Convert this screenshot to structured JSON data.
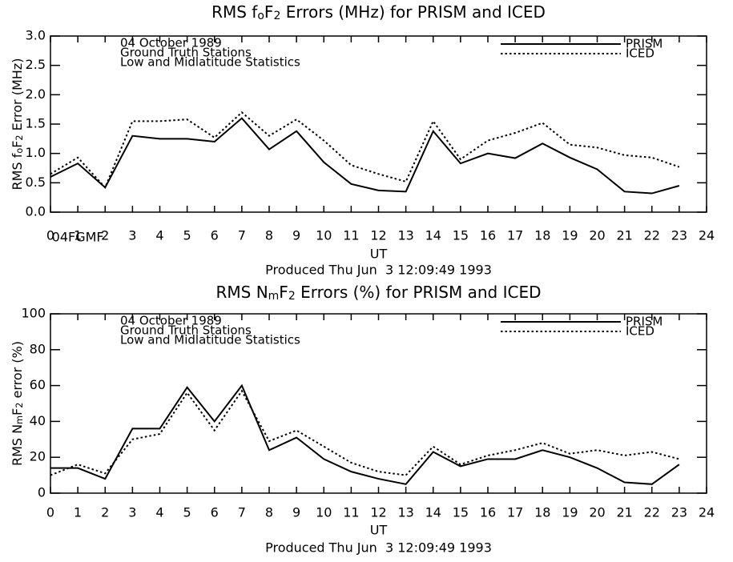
{
  "chart_data": [
    {
      "type": "line",
      "title": [
        "RMS f",
        "o",
        "F",
        "2",
        " Errors (MHz) for PRISM and ICED"
      ],
      "ylabel": [
        "RMS f",
        "o",
        "F",
        "2",
        " Error (MHz)"
      ],
      "xlabel": "UT",
      "footer": "Produced Thu Jun  3 12:09:49 1993",
      "annotations": [
        "04 October 1989",
        "Ground Truth Stations",
        "Low and Midlatitude Statistics"
      ],
      "stray_label": "04FGMF",
      "legend": "upper right",
      "x": [
        0,
        1,
        2,
        3,
        4,
        5,
        6,
        7,
        8,
        9,
        10,
        11,
        12,
        13,
        14,
        15,
        16,
        17,
        18,
        19,
        20,
        21,
        22,
        23
      ],
      "xlim": [
        0,
        24
      ],
      "xticks": [
        0,
        1,
        2,
        3,
        4,
        5,
        6,
        7,
        8,
        9,
        10,
        11,
        12,
        13,
        14,
        15,
        16,
        17,
        18,
        19,
        20,
        21,
        22,
        23,
        24
      ],
      "ylim": [
        0,
        3
      ],
      "yticks": [
        {
          "value": 0,
          "label": "0.0"
        },
        {
          "value": 0.5,
          "label": "0.5"
        },
        {
          "value": 1,
          "label": "1.0"
        },
        {
          "value": 1.5,
          "label": "1.5"
        },
        {
          "value": 2,
          "label": "2.0"
        },
        {
          "value": 2.5,
          "label": "2.5"
        },
        {
          "value": 3,
          "label": "3.0"
        }
      ],
      "series": [
        {
          "name": "PRISM",
          "color": "#000000",
          "dash": "solid",
          "values": [
            0.6,
            0.83,
            0.42,
            1.3,
            1.25,
            1.25,
            1.2,
            1.6,
            1.07,
            1.38,
            0.85,
            0.48,
            0.37,
            0.35,
            1.38,
            0.83,
            1.0,
            0.92,
            1.17,
            0.93,
            0.73,
            0.35,
            0.32,
            0.45
          ]
        },
        {
          "name": "ICED",
          "color": "#000000",
          "dash": "dotted",
          "values": [
            0.65,
            0.93,
            0.42,
            1.55,
            1.55,
            1.58,
            1.27,
            1.7,
            1.3,
            1.58,
            1.22,
            0.8,
            0.65,
            0.52,
            1.55,
            0.9,
            1.22,
            1.35,
            1.52,
            1.15,
            1.1,
            0.97,
            0.93,
            0.77
          ]
        }
      ]
    },
    {
      "type": "line",
      "title": [
        "RMS N",
        "m",
        "F",
        "2",
        " Errors (%) for PRISM and ICED"
      ],
      "ylabel": [
        "RMS N",
        "m",
        "F",
        "2",
        " error (%)"
      ],
      "xlabel": "UT",
      "footer": "Produced Thu Jun  3 12:09:49 1993",
      "annotations": [
        "04 October 1989",
        "Ground Truth Stations",
        "Low and Midlatitude Statistics"
      ],
      "legend": "upper right",
      "x": [
        0,
        1,
        2,
        3,
        4,
        5,
        6,
        7,
        8,
        9,
        10,
        11,
        12,
        13,
        14,
        15,
        16,
        17,
        18,
        19,
        20,
        21,
        22,
        23
      ],
      "xlim": [
        0,
        24
      ],
      "xticks": [
        0,
        1,
        2,
        3,
        4,
        5,
        6,
        7,
        8,
        9,
        10,
        11,
        12,
        13,
        14,
        15,
        16,
        17,
        18,
        19,
        20,
        21,
        22,
        23,
        24
      ],
      "ylim": [
        0,
        100
      ],
      "yticks": [
        0,
        20,
        40,
        60,
        80,
        100
      ],
      "series": [
        {
          "name": "PRISM",
          "color": "#000000",
          "dash": "solid",
          "values": [
            14,
            14,
            8,
            36,
            36,
            59,
            40,
            60,
            24,
            31,
            19,
            12,
            8,
            5,
            23,
            15,
            19,
            19,
            24,
            20,
            14,
            6,
            5,
            16
          ]
        },
        {
          "name": "ICED",
          "color": "#000000",
          "dash": "dotted",
          "values": [
            10,
            16,
            11,
            30,
            33,
            56,
            35,
            57,
            29,
            35,
            26,
            17,
            12,
            10,
            26,
            16,
            21,
            24,
            28,
            22,
            24,
            21,
            23,
            19
          ]
        }
      ]
    }
  ]
}
